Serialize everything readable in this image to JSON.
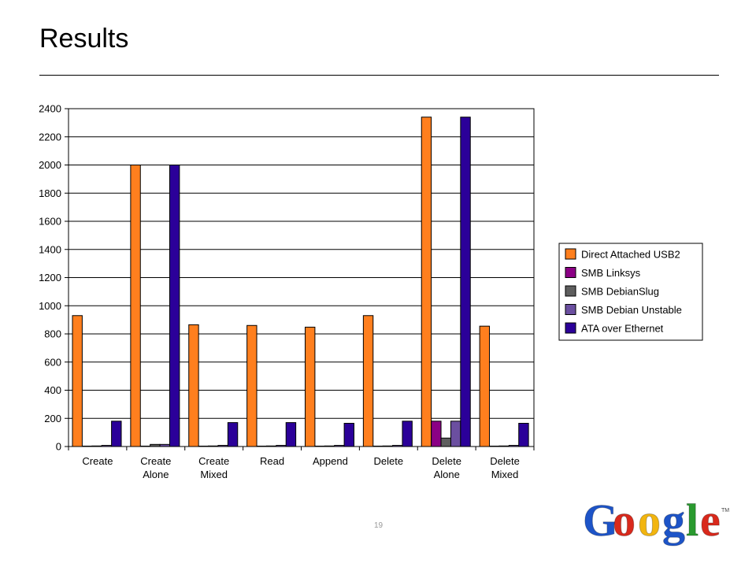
{
  "slide": {
    "title": "Results",
    "page_number": "19",
    "logo_text": "Google",
    "logo_tm": "TM"
  },
  "colors": {
    "Direct Attached USB2": "#ff7f1e",
    "SMB Linksys": "#8b0085",
    "SMB DebianSlug": "#5e5e5e",
    "SMB Debian Unstable": "#6b4fa0",
    "ATA over Ethernet": "#2b0099"
  },
  "chart_data": {
    "type": "bar",
    "title": "",
    "xlabel": "",
    "ylabel": "",
    "ylim": [
      0,
      2400
    ],
    "yticks": [
      0,
      200,
      400,
      600,
      800,
      1000,
      1200,
      1400,
      1600,
      1800,
      2000,
      2200,
      2400
    ],
    "grid": true,
    "legend_position": "right",
    "categories": [
      [
        "Create"
      ],
      [
        "Create",
        "Alone"
      ],
      [
        "Create",
        "Mixed"
      ],
      [
        "Read"
      ],
      [
        "Append"
      ],
      [
        "Delete"
      ],
      [
        "Delete",
        "Alone"
      ],
      [
        "Delete",
        "Mixed"
      ]
    ],
    "series": [
      {
        "name": "Direct Attached USB2",
        "values": [
          930,
          2000,
          865,
          860,
          848,
          930,
          2340,
          855
        ]
      },
      {
        "name": "SMB Linksys",
        "values": [
          3,
          3,
          3,
          3,
          3,
          3,
          180,
          3
        ]
      },
      {
        "name": "SMB DebianSlug",
        "values": [
          4,
          15,
          4,
          4,
          4,
          4,
          60,
          4
        ]
      },
      {
        "name": "SMB Debian Unstable",
        "values": [
          8,
          15,
          8,
          8,
          8,
          8,
          180,
          8
        ]
      },
      {
        "name": "ATA over Ethernet",
        "values": [
          180,
          2000,
          170,
          170,
          165,
          180,
          2340,
          165
        ]
      }
    ]
  }
}
